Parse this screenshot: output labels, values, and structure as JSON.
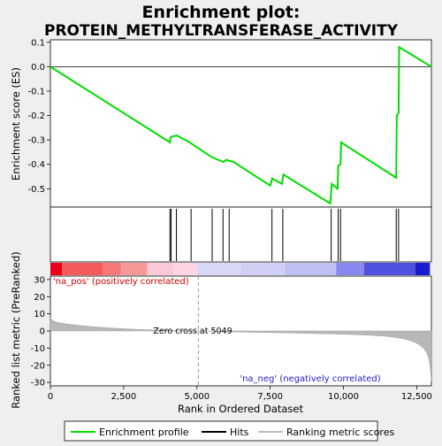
{
  "chart_data": {
    "type": "line",
    "title_lines": [
      "Enrichment plot:",
      "PROTEIN_METHYLTRANSFERASE_ACTIVITY"
    ],
    "panels": {
      "enrichment": {
        "ylabel": "Enrichment score (ES)",
        "xlim": [
          0,
          13000
        ],
        "ylim": [
          -0.575,
          0.11
        ],
        "yticks": [
          0.1,
          0.0,
          -0.1,
          -0.2,
          -0.3,
          -0.4,
          -0.5
        ],
        "ytick_labels": [
          "0.1",
          "0.0",
          "-0.1",
          "-0.2",
          "-0.3",
          "-0.4",
          "-0.5"
        ],
        "series": {
          "name": "Enrichment profile",
          "color": "#00dd00",
          "x": [
            0,
            4080,
            4100,
            4180,
            4320,
            4750,
            5500,
            5900,
            6000,
            6100,
            6250,
            7500,
            7570,
            7900,
            7950,
            9550,
            9600,
            9800,
            9820,
            9900,
            9920,
            11800,
            11820,
            11880,
            11900,
            13000
          ],
          "y": [
            0.0,
            -0.31,
            -0.29,
            -0.285,
            -0.282,
            -0.31,
            -0.37,
            -0.39,
            -0.382,
            -0.385,
            -0.39,
            -0.487,
            -0.458,
            -0.48,
            -0.442,
            -0.56,
            -0.48,
            -0.5,
            -0.405,
            -0.4,
            -0.31,
            -0.455,
            -0.2,
            -0.19,
            0.08,
            0.0
          ]
        }
      },
      "hits": {
        "name": "Hits",
        "positions": [
          4080,
          4120,
          4300,
          4800,
          5520,
          5890,
          6100,
          7560,
          7930,
          9580,
          9820,
          9900,
          11800,
          11880
        ]
      },
      "ranked_metric": {
        "ylabel": "Ranked list metric (PreRanked)",
        "xlabel": "Rank in Ordered Dataset",
        "xlim": [
          0,
          13000
        ],
        "ylim": [
          -32,
          32
        ],
        "yticks": [
          30,
          20,
          10,
          0,
          -10,
          -20,
          -30
        ],
        "ytick_labels": [
          "30",
          "20",
          "10",
          "0",
          "-10",
          "-20",
          "-30"
        ],
        "xticks": [
          0,
          2500,
          5000,
          7500,
          10000,
          12500
        ],
        "xtick_labels": [
          "0",
          "2,500",
          "5,000",
          "7,500",
          "10,000",
          "12,500"
        ],
        "zero_cross": 5049,
        "zero_cross_label": "Zero cross at 5049",
        "pos_label": "'na_pos' (positively correlated)",
        "neg_label": "'na_neg' (negatively correlated)",
        "curve": {
          "x": [
            0,
            50,
            150,
            300,
            600,
            1000,
            1500,
            2000,
            2500,
            3000,
            3500,
            4000,
            4500,
            5049,
            6000,
            7000,
            8000,
            9000,
            10000,
            10500,
            11000,
            11500,
            11800,
            12100,
            12300,
            12500,
            12650,
            12750,
            12850,
            12900,
            12950,
            13000
          ],
          "y": [
            8,
            6.5,
            5.5,
            4.8,
            4.0,
            3.2,
            2.4,
            1.8,
            1.3,
            0.9,
            0.6,
            0.35,
            0.15,
            0,
            -0.4,
            -0.8,
            -1.1,
            -1.5,
            -1.9,
            -2.2,
            -2.6,
            -3.2,
            -3.8,
            -4.8,
            -5.8,
            -7.2,
            -8.8,
            -10.5,
            -13,
            -15.5,
            -20,
            -29
          ]
        }
      },
      "color_bar": {
        "segments": [
          {
            "x0": 0,
            "x1": 400,
            "color": "#e8001a"
          },
          {
            "x0": 400,
            "x1": 1800,
            "color": "#f55a5a"
          },
          {
            "x0": 1800,
            "x1": 2400,
            "color": "#f77878"
          },
          {
            "x0": 2400,
            "x1": 3300,
            "color": "#f79898"
          },
          {
            "x0": 3300,
            "x1": 4200,
            "color": "#fbc8d8"
          },
          {
            "x0": 4200,
            "x1": 5000,
            "color": "#fcd4e4"
          },
          {
            "x0": 5000,
            "x1": 6500,
            "color": "#d8d8f6"
          },
          {
            "x0": 6500,
            "x1": 8000,
            "color": "#d0d0f6"
          },
          {
            "x0": 8000,
            "x1": 9750,
            "color": "#c0c0f2"
          },
          {
            "x0": 9750,
            "x1": 10700,
            "color": "#8888ee"
          },
          {
            "x0": 10700,
            "x1": 12450,
            "color": "#5050e0"
          },
          {
            "x0": 12450,
            "x1": 12950,
            "color": "#1a1ad0"
          }
        ]
      }
    },
    "legend": {
      "placement": "bottom",
      "items": [
        {
          "label": "Enrichment profile",
          "color": "#00dd00"
        },
        {
          "label": "Hits",
          "color": "#000000"
        },
        {
          "label": "Ranking metric scores",
          "color": "#bbbbbb"
        }
      ]
    }
  }
}
